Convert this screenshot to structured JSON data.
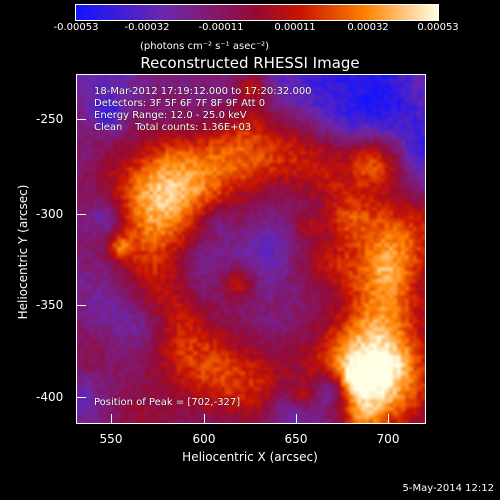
{
  "colorbar": {
    "ticks": [
      "-0.00053",
      "-0.00032",
      "-0.00011",
      "0.00011",
      "0.00032",
      "0.00053"
    ],
    "units": "(photons cm⁻² s⁻¹ asec⁻²)"
  },
  "title": "Reconstructed RHESSI Image",
  "annotations": {
    "time_range": "18-Mar-2012 17:19:12.000 to 17:20:32.000",
    "detectors": "Detectors: 3F 5F 6F 7F 8F 9F Att 0",
    "energy": "Energy Range: 12.0 - 25.0 keV",
    "method": "Clean    Total counts: 1.36E+03",
    "peak": "Position of Peak = [702,-327]"
  },
  "axes": {
    "xlabel": "Heliocentric X (arcsec)",
    "ylabel": "Heliocentric Y (arcsec)",
    "xticks": [
      "550",
      "600",
      "650",
      "700"
    ],
    "yticks": [
      "-250",
      "-300",
      "-350",
      "-400"
    ]
  },
  "footer": {
    "date": "5-May-2014 12:12"
  },
  "colors": {
    "low": "#1a22ff",
    "mid_low": "#6a2aa8",
    "mid": "#b0103a",
    "high": "#ff7a00",
    "peak": "#ffffe0"
  }
}
